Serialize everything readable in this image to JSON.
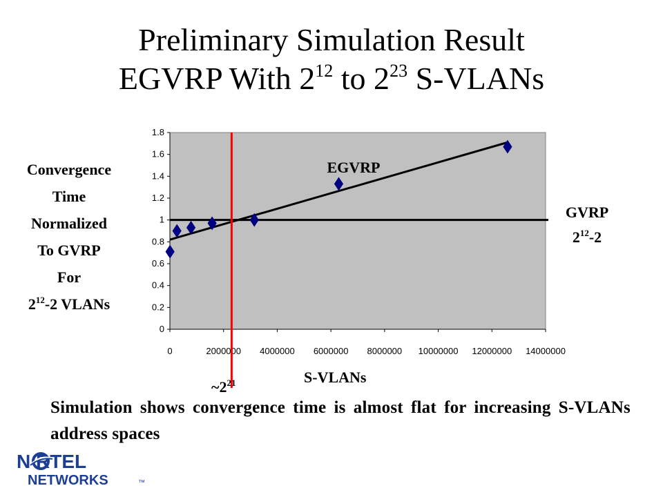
{
  "slide": {
    "title_line1": "Preliminary Simulation Result",
    "title_line2_prefix": "EGVRP With 2",
    "title_exp1": "12",
    "title_mid": " to 2",
    "title_exp2": "23",
    "title_suffix": " S-VLANs",
    "ylabel_lines": [
      "Convergence",
      "Time",
      "Normalized",
      "To GVRP",
      "For"
    ],
    "ylabel_last_base": "2",
    "ylabel_last_exp": "12",
    "ylabel_last_rest": "-2 VLANs",
    "gvrp_label": "GVRP",
    "gvrp_base": "2",
    "gvrp_exp": "12",
    "gvrp_rest": "-2",
    "approx_prefix": "~2",
    "approx_exp": "21",
    "caption": "Simulation shows convergence time is almost flat for increasing S-VLANs address spaces",
    "logo_top": "N   RTEL",
    "logo_bottom": "NETWORKS",
    "logo_tm": "™"
  },
  "colors": {
    "plot_bg": "#c0c0c0",
    "marker": "#000080",
    "red_line": "#ff0000",
    "logo_blue": "#1c3f94"
  },
  "chart_data": {
    "type": "scatter",
    "title": "",
    "xlabel": "S-VLANs",
    "ylabel": "",
    "xlim": [
      0,
      14000000
    ],
    "ylim": [
      0,
      1.8
    ],
    "x_ticks": [
      "0",
      "2000000",
      "4000000",
      "6000000",
      "8000000",
      "10000000",
      "12000000",
      "14000000"
    ],
    "y_ticks": [
      "0",
      "0.2",
      "0.4",
      "0.6",
      "0.8",
      "1",
      "1.2",
      "1.4",
      "1.6",
      "1.8"
    ],
    "series": [
      {
        "name": "EGVRP",
        "x": [
          4094,
          262144,
          786432,
          1572864,
          3145728,
          6291456,
          12582912
        ],
        "y": [
          0.71,
          0.9,
          0.93,
          0.97,
          1.0,
          1.33,
          1.67
        ]
      }
    ],
    "trendline": {
      "x": [
        0,
        12582912
      ],
      "y": [
        0.82,
        1.71
      ]
    },
    "reference_line": {
      "name": "GVRP",
      "y": 1.0
    },
    "vertical_marker": {
      "x": 2300000
    },
    "grid": false
  }
}
